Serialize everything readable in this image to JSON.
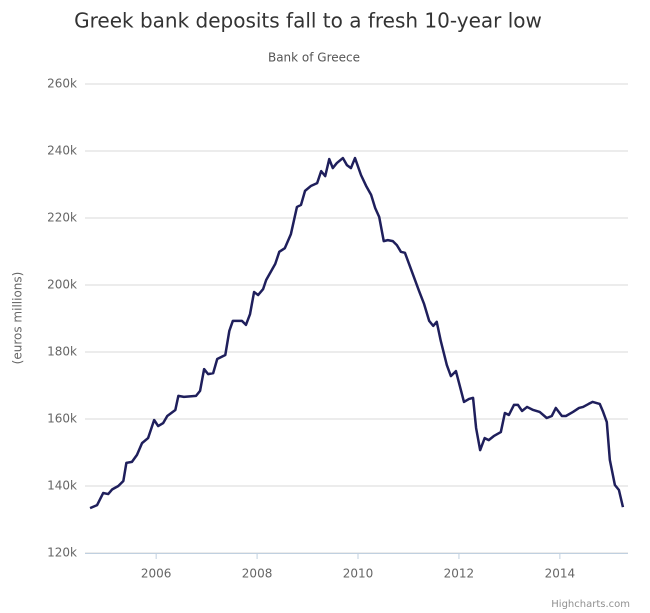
{
  "chart_data": {
    "type": "line",
    "title": "Greek bank deposits fall to a fresh 10-year low",
    "subtitle": "Bank of Greece",
    "y_label": "(euros millions)",
    "credits": "Highcharts.com",
    "color": "#1f1f5c",
    "grid": true,
    "xlim": [
      2004.59,
      2015.35
    ],
    "xticks": [
      2006,
      2008,
      2010,
      2012,
      2014
    ],
    "ylim": [
      120000,
      260000
    ],
    "yticks": [
      {
        "value": 120000,
        "label": "120k"
      },
      {
        "value": 140000,
        "label": "140k"
      },
      {
        "value": 160000,
        "label": "160k"
      },
      {
        "value": 180000,
        "label": "180k"
      },
      {
        "value": 200000,
        "label": "200k"
      },
      {
        "value": 220000,
        "label": "220k"
      },
      {
        "value": 240000,
        "label": "240k"
      },
      {
        "value": 260000,
        "label": "260k"
      }
    ],
    "x": [
      2004.69,
      2004.83,
      2004.95,
      2005.05,
      2005.13,
      2005.25,
      2005.35,
      2005.41,
      2005.52,
      2005.62,
      2005.72,
      2005.84,
      2005.96,
      2006.04,
      2006.14,
      2006.22,
      2006.38,
      2006.44,
      2006.55,
      2006.79,
      2006.87,
      2006.95,
      2007.03,
      2007.13,
      2007.21,
      2007.37,
      2007.45,
      2007.52,
      2007.7,
      2007.78,
      2007.86,
      2007.94,
      2008.02,
      2008.12,
      2008.18,
      2008.36,
      2008.44,
      2008.55,
      2008.67,
      2008.79,
      2008.87,
      2008.95,
      2009.07,
      2009.19,
      2009.27,
      2009.35,
      2009.43,
      2009.5,
      2009.58,
      2009.7,
      2009.78,
      2009.86,
      2009.94,
      2010.06,
      2010.16,
      2010.26,
      2010.34,
      2010.42,
      2010.51,
      2010.59,
      2010.69,
      2010.77,
      2010.85,
      2010.93,
      2011.07,
      2011.21,
      2011.31,
      2011.41,
      2011.49,
      2011.56,
      2011.64,
      2011.76,
      2011.84,
      2011.94,
      2012.1,
      2012.2,
      2012.28,
      2012.34,
      2012.42,
      2012.51,
      2012.59,
      2012.69,
      2012.83,
      2012.91,
      2012.99,
      2013.09,
      2013.17,
      2013.25,
      2013.35,
      2013.47,
      2013.6,
      2013.74,
      2013.84,
      2013.92,
      2014.04,
      2014.12,
      2014.26,
      2014.38,
      2014.46,
      2014.57,
      2014.65,
      2014.79,
      2014.85,
      2014.93,
      2014.99,
      2015.09,
      2015.17,
      2015.25
    ],
    "values": [
      133400,
      134300,
      137900,
      137600,
      139000,
      140000,
      141500,
      146900,
      147200,
      149300,
      152800,
      154300,
      159700,
      157900,
      158800,
      160900,
      162700,
      166900,
      166600,
      166900,
      168400,
      174900,
      173400,
      173700,
      177900,
      179100,
      186300,
      189300,
      189300,
      188100,
      191300,
      197900,
      197000,
      198800,
      201500,
      206300,
      209900,
      211000,
      215200,
      223300,
      223900,
      228100,
      229600,
      230400,
      234000,
      232500,
      237600,
      234900,
      236400,
      237900,
      235800,
      234900,
      237900,
      232800,
      229600,
      226900,
      223000,
      220300,
      213100,
      213400,
      213100,
      211900,
      209900,
      209600,
      203900,
      198200,
      194300,
      189300,
      187800,
      189000,
      183300,
      176100,
      172800,
      174300,
      165100,
      166000,
      166300,
      157300,
      150700,
      154300,
      153700,
      154900,
      156100,
      161800,
      161200,
      164200,
      164200,
      162400,
      163600,
      162700,
      162100,
      160300,
      160900,
      163300,
      160900,
      160900,
      162100,
      163300,
      163600,
      164500,
      165100,
      164500,
      162400,
      159100,
      147800,
      140300,
      138800,
      133700
    ]
  }
}
